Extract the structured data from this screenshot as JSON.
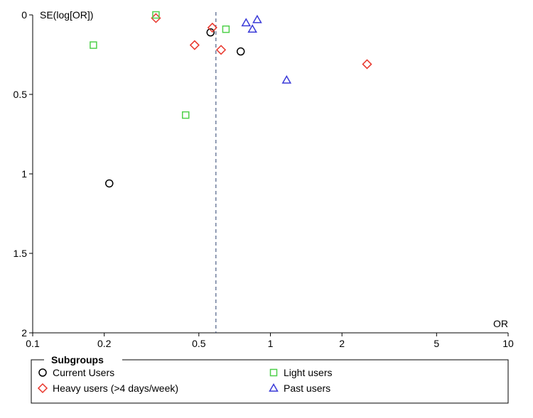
{
  "chart_data": {
    "type": "scatter",
    "title": "",
    "xlabel": "OR",
    "ylabel": "SE(log[OR])",
    "x_scale": "log",
    "xlim": [
      0.1,
      10
    ],
    "ylim": [
      0,
      2
    ],
    "y_inverted": true,
    "x_ticks": [
      0.1,
      0.2,
      0.5,
      1,
      2,
      5,
      10
    ],
    "x_tick_labels": [
      "0.1",
      "0.2",
      "0.5",
      "1",
      "2",
      "5",
      "10"
    ],
    "y_ticks": [
      0,
      0.5,
      1,
      1.5,
      2
    ],
    "y_tick_labels": [
      "0",
      "0.5",
      "1",
      "1.5",
      "2"
    ],
    "reference_line": {
      "orientation": "vertical",
      "x": 0.59,
      "style": "dashed",
      "color": "#2a3f6e"
    },
    "grid": false,
    "legend": {
      "title": "Subgroups",
      "placement": "bottom",
      "entries": [
        {
          "label": "Current Users",
          "series": 0
        },
        {
          "label": "Light users",
          "series": 2
        },
        {
          "label": "Heavy users (>4 days/week)",
          "series": 1
        },
        {
          "label": "Past users",
          "series": 3
        }
      ]
    },
    "series": [
      {
        "name": "Current Users",
        "marker": "circle",
        "color": "#000000",
        "points": [
          {
            "x": 0.56,
            "y": 0.11
          },
          {
            "x": 0.75,
            "y": 0.23
          },
          {
            "x": 0.21,
            "y": 1.06
          }
        ]
      },
      {
        "name": "Heavy users (>4 days/week)",
        "marker": "diamond",
        "color": "#e8352b",
        "points": [
          {
            "x": 0.33,
            "y": 0.02
          },
          {
            "x": 0.57,
            "y": 0.08
          },
          {
            "x": 0.62,
            "y": 0.22
          },
          {
            "x": 0.48,
            "y": 0.19
          },
          {
            "x": 2.55,
            "y": 0.31
          }
        ]
      },
      {
        "name": "Light users",
        "marker": "square",
        "color": "#4fd04a",
        "points": [
          {
            "x": 0.33,
            "y": 0.0
          },
          {
            "x": 0.65,
            "y": 0.09
          },
          {
            "x": 0.18,
            "y": 0.19
          },
          {
            "x": 0.44,
            "y": 0.63
          }
        ]
      },
      {
        "name": "Past users",
        "marker": "triangle",
        "color": "#3a3ad8",
        "points": [
          {
            "x": 0.79,
            "y": 0.05
          },
          {
            "x": 0.88,
            "y": 0.03
          },
          {
            "x": 0.84,
            "y": 0.09
          },
          {
            "x": 1.17,
            "y": 0.41
          }
        ]
      }
    ]
  }
}
